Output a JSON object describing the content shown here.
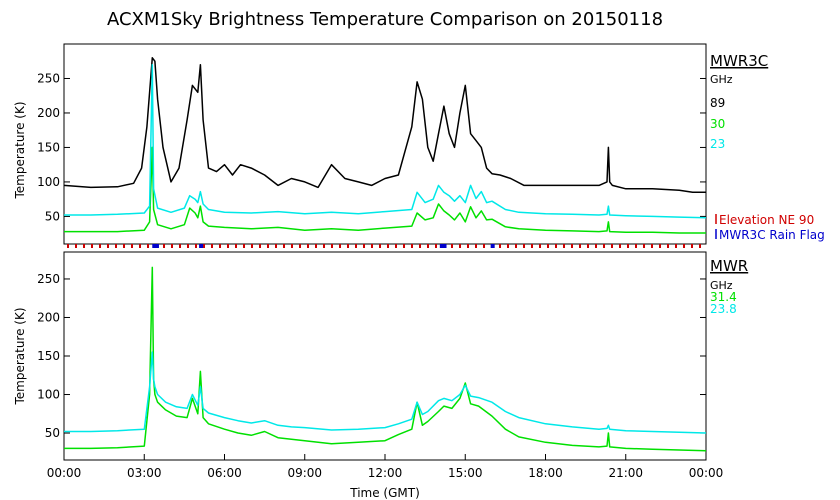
{
  "title": "ACXM1Sky Brightness Temperature Comparison on 20150118",
  "colors": {
    "c89": "#000000",
    "c30": "#00e000",
    "c23": "#00e8e8",
    "elev": "#d00000",
    "rain": "#0000cc",
    "c314": "#00e000",
    "c238": "#00e8e8"
  },
  "chart_data": [
    {
      "type": "line",
      "panel": "top",
      "ylabel": "Temperature (K)",
      "ylim": [
        10,
        300
      ],
      "yticks": [
        "50",
        "100",
        "150",
        "200",
        "250"
      ],
      "xlim": [
        0,
        24
      ],
      "instrument": "MWR3C",
      "unit": "GHz",
      "series": [
        {
          "name": "89",
          "color": "#000000",
          "x": [
            0,
            1,
            2,
            2.6,
            2.9,
            3.1,
            3.3,
            3.4,
            3.5,
            3.7,
            4,
            4.3,
            4.6,
            4.8,
            5,
            5.1,
            5.2,
            5.4,
            5.7,
            6,
            6.3,
            6.6,
            7,
            7.5,
            8,
            8.5,
            9,
            9.5,
            10,
            10.5,
            11,
            11.5,
            12,
            12.5,
            13,
            13.2,
            13.4,
            13.6,
            13.8,
            14,
            14.2,
            14.4,
            14.6,
            14.8,
            15,
            15.2,
            15.4,
            15.6,
            15.8,
            16,
            16.3,
            16.7,
            17.2,
            18,
            19,
            20,
            20.3,
            20.35,
            20.4,
            20.5,
            21,
            22,
            23,
            23.5,
            24
          ],
          "y": [
            95,
            92,
            93,
            98,
            120,
            180,
            280,
            275,
            220,
            150,
            100,
            120,
            190,
            240,
            230,
            270,
            190,
            120,
            115,
            125,
            110,
            125,
            120,
            110,
            95,
            105,
            100,
            92,
            125,
            105,
            100,
            95,
            105,
            110,
            180,
            245,
            220,
            150,
            130,
            170,
            210,
            170,
            150,
            200,
            240,
            170,
            160,
            150,
            120,
            112,
            110,
            105,
            95,
            95,
            95,
            95,
            100,
            150,
            100,
            95,
            90,
            90,
            88,
            85,
            85
          ]
        },
        {
          "name": "30",
          "color": "#00e000",
          "x": [
            0,
            1,
            2,
            3,
            3.2,
            3.3,
            3.35,
            3.5,
            4,
            4.5,
            4.7,
            4.9,
            5,
            5.1,
            5.2,
            5.4,
            6,
            7,
            8,
            9,
            10,
            11,
            12,
            13,
            13.2,
            13.5,
            13.8,
            14,
            14.2,
            14.4,
            14.6,
            14.8,
            15,
            15.2,
            15.4,
            15.6,
            15.8,
            16,
            16.5,
            17,
            18,
            19,
            20,
            20.3,
            20.35,
            20.4,
            21,
            22,
            23,
            24
          ],
          "y": [
            28,
            28,
            28,
            30,
            42,
            150,
            60,
            38,
            32,
            38,
            62,
            55,
            48,
            65,
            42,
            36,
            34,
            32,
            34,
            30,
            32,
            30,
            33,
            36,
            55,
            45,
            48,
            68,
            58,
            52,
            45,
            55,
            42,
            64,
            48,
            58,
            45,
            46,
            35,
            32,
            30,
            29,
            28,
            29,
            42,
            28,
            27,
            27,
            26,
            26
          ]
        },
        {
          "name": "23",
          "color": "#00e8e8",
          "x": [
            0,
            1,
            2,
            3,
            3.2,
            3.3,
            3.35,
            3.5,
            4,
            4.5,
            4.7,
            4.9,
            5,
            5.1,
            5.2,
            5.4,
            6,
            7,
            8,
            9,
            10,
            11,
            12,
            13,
            13.2,
            13.5,
            13.8,
            14,
            14.2,
            14.4,
            14.6,
            14.8,
            15,
            15.2,
            15.4,
            15.6,
            15.8,
            16,
            16.5,
            17,
            18,
            19,
            20,
            20.3,
            20.35,
            20.4,
            21,
            22,
            23,
            24
          ],
          "y": [
            52,
            52,
            53,
            55,
            65,
            270,
            90,
            62,
            56,
            62,
            80,
            75,
            70,
            86,
            68,
            60,
            56,
            55,
            57,
            54,
            56,
            54,
            57,
            60,
            85,
            70,
            75,
            95,
            85,
            80,
            72,
            80,
            70,
            95,
            76,
            86,
            70,
            72,
            60,
            56,
            54,
            53,
            52,
            53,
            65,
            52,
            51,
            50,
            49,
            48
          ]
        }
      ]
    },
    {
      "type": "line",
      "panel": "bottom",
      "ylabel": "Temperature (K)",
      "ylim": [
        15,
        285
      ],
      "yticks": [
        "50",
        "100",
        "150",
        "200",
        "250"
      ],
      "xlim": [
        0,
        24
      ],
      "xlabel": "Time (GMT)",
      "xticks": [
        "00:00",
        "03:00",
        "06:00",
        "09:00",
        "12:00",
        "15:00",
        "18:00",
        "21:00",
        "00:00"
      ],
      "instrument": "MWR",
      "unit": "GHz",
      "series": [
        {
          "name": "31.4",
          "color": "#00e000",
          "x": [
            0,
            1,
            2,
            3,
            3.2,
            3.3,
            3.35,
            3.4,
            3.5,
            3.8,
            4.2,
            4.6,
            4.8,
            5,
            5.1,
            5.2,
            5.4,
            6,
            6.5,
            7,
            7.5,
            8,
            8.5,
            9,
            10,
            11,
            12,
            12.5,
            13,
            13.2,
            13.4,
            13.6,
            14,
            14.2,
            14.5,
            14.8,
            15,
            15.2,
            15.5,
            16,
            16.5,
            17,
            18,
            19,
            20,
            20.3,
            20.35,
            20.4,
            21,
            22,
            23,
            24
          ],
          "y": [
            30,
            30,
            31,
            33,
            100,
            265,
            120,
            100,
            90,
            80,
            72,
            70,
            95,
            75,
            130,
            70,
            62,
            55,
            50,
            47,
            52,
            44,
            42,
            40,
            36,
            38,
            40,
            48,
            55,
            90,
            60,
            65,
            78,
            85,
            82,
            95,
            115,
            88,
            85,
            72,
            55,
            45,
            38,
            34,
            32,
            33,
            50,
            32,
            30,
            29,
            28,
            27
          ]
        },
        {
          "name": "23.8",
          "color": "#00e8e8",
          "x": [
            0,
            1,
            2,
            3,
            3.2,
            3.3,
            3.35,
            3.4,
            3.5,
            3.8,
            4.2,
            4.6,
            4.8,
            5,
            5.1,
            5.2,
            5.4,
            6,
            6.5,
            7,
            7.5,
            8,
            8.5,
            9,
            10,
            11,
            12,
            12.5,
            13,
            13.2,
            13.4,
            13.6,
            14,
            14.2,
            14.5,
            14.8,
            15,
            15.2,
            15.5,
            16,
            16.5,
            17,
            18,
            19,
            20,
            20.3,
            20.35,
            20.4,
            21,
            22,
            23,
            24
          ],
          "y": [
            52,
            52,
            53,
            55,
            110,
            155,
            120,
            110,
            100,
            90,
            84,
            82,
            100,
            86,
            110,
            82,
            76,
            70,
            66,
            63,
            66,
            60,
            58,
            57,
            54,
            55,
            57,
            62,
            68,
            90,
            74,
            78,
            92,
            95,
            92,
            100,
            112,
            98,
            96,
            90,
            78,
            70,
            62,
            58,
            55,
            56,
            60,
            55,
            53,
            52,
            51,
            50
          ]
        }
      ]
    }
  ],
  "flags": {
    "elevation_label": "Elevation NE 90",
    "rain_label": "MWR3C Rain Flag",
    "rain_ranges": [
      [
        3.3,
        3.55
      ],
      [
        5.05,
        5.2
      ],
      [
        14.05,
        14.3
      ],
      [
        15.95,
        16.1
      ]
    ]
  }
}
